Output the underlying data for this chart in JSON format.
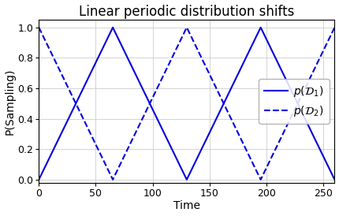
{
  "title": "Linear periodic distribution shifts",
  "xlabel": "Time",
  "ylabel": "P(Sampling)",
  "xlim": [
    0,
    260
  ],
  "ylim": [
    -0.02,
    1.05
  ],
  "xticks": [
    0,
    50,
    100,
    150,
    200,
    250
  ],
  "yticks": [
    0.0,
    0.2,
    0.4,
    0.6,
    0.8,
    1.0
  ],
  "period": 130,
  "color": "#0000dd",
  "line_width": 1.5,
  "legend_label_1": "$p(\\mathcal{D}_1)$",
  "legend_label_2": "$p(\\mathcal{D}_2)$",
  "grid_color": "#cccccc",
  "grid_linewidth": 0.6,
  "title_fontsize": 12,
  "label_fontsize": 10,
  "tick_fontsize": 9,
  "legend_fontsize": 10,
  "fig_width": 4.3,
  "fig_height": 2.74,
  "dpi": 100
}
